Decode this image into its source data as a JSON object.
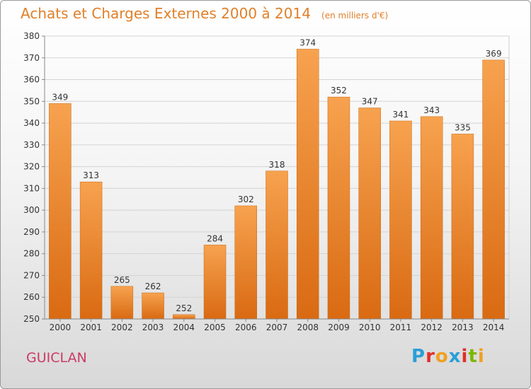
{
  "title": "Achats et Charges Externes 2000 à 2014",
  "unit_note": "(en milliers d'€)",
  "place": "GUICLAN",
  "logo": {
    "text": "Proxiti",
    "letter_colors": [
      "#2a9fd8",
      "#e0302a",
      "#f0a020",
      "#2a9fd8",
      "#e0302a",
      "#7ab800",
      "#f0a020"
    ]
  },
  "colors": {
    "bar_light": "#f7a24f",
    "bar_dark": "#d96a12",
    "text": "#e0802a",
    "place": "#cc3a66"
  },
  "chart_data": {
    "type": "bar",
    "categories": [
      "2000",
      "2001",
      "2002",
      "2003",
      "2004",
      "2005",
      "2006",
      "2007",
      "2008",
      "2009",
      "2010",
      "2011",
      "2012",
      "2013",
      "2014"
    ],
    "values": [
      349,
      313,
      265,
      262,
      252,
      284,
      302,
      318,
      374,
      352,
      347,
      341,
      343,
      335,
      369
    ],
    "ylim": [
      250,
      380
    ],
    "yticks": [
      250,
      260,
      270,
      280,
      290,
      300,
      310,
      320,
      330,
      340,
      350,
      360,
      370,
      380
    ],
    "grid": true,
    "data_labels": true
  }
}
